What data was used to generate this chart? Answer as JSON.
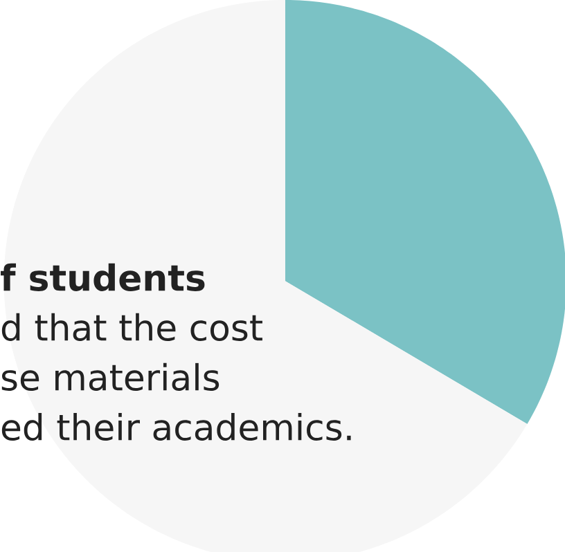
{
  "chart_data": {
    "type": "pie",
    "categories": [
      null,
      null
    ],
    "values": [
      33.5,
      66.5
    ],
    "colors": [
      "#7bc2c5",
      "#f6f6f6"
    ],
    "annotations": [
      "f students",
      "d that the cost",
      "se materials",
      "ed their academics."
    ]
  }
}
